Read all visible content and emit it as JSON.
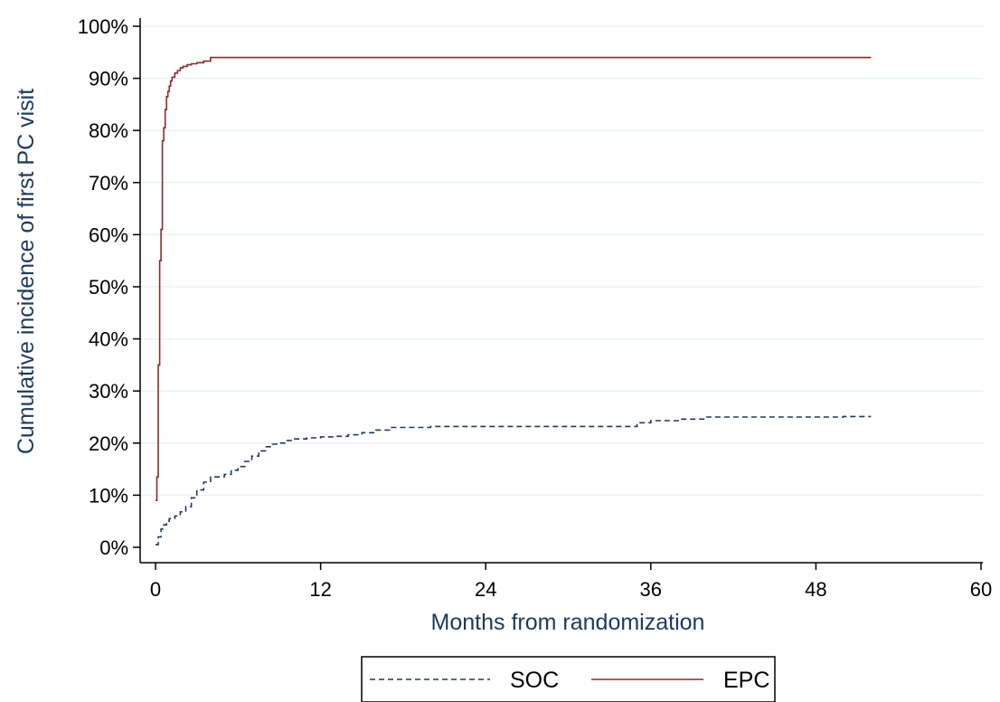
{
  "chart_data": {
    "type": "line",
    "xlabel": "Months from randomization",
    "ylabel": "Cumulative incidence of first PC visit",
    "xlim": [
      0,
      60
    ],
    "ylim": [
      0,
      100
    ],
    "xticks": [
      0,
      12,
      24,
      36,
      48,
      60
    ],
    "yticks": [
      0,
      10,
      20,
      30,
      40,
      50,
      60,
      70,
      80,
      90,
      100
    ],
    "ytick_format": "percent",
    "grid": "horizontal",
    "legend_position": "bottom",
    "series": [
      {
        "name": "SOC",
        "color": "#1f3b5c",
        "style": "dashed",
        "step": true,
        "x": [
          0,
          0.2,
          0.4,
          0.6,
          0.8,
          1.0,
          1.4,
          1.8,
          2.2,
          2.6,
          3.0,
          3.5,
          4.0,
          5.0,
          5.5,
          6.0,
          6.5,
          7.0,
          7.5,
          8.0,
          8.5,
          9.0,
          9.5,
          10.0,
          11.0,
          12.0,
          13.0,
          14.0,
          15.0,
          16.0,
          17.0,
          20.0,
          24.0,
          30.0,
          34.0,
          35.0,
          36.0,
          38.0,
          40.0,
          45.0,
          50.0,
          52.0
        ],
        "y": [
          0.5,
          2.0,
          3.5,
          4.3,
          5.0,
          5.5,
          6.0,
          6.8,
          7.8,
          9.5,
          11.0,
          12.5,
          13.5,
          14.0,
          14.8,
          15.5,
          16.5,
          17.5,
          18.5,
          19.3,
          19.8,
          20.0,
          20.5,
          20.8,
          21.0,
          21.2,
          21.3,
          21.6,
          22.0,
          22.5,
          23.0,
          23.2,
          23.2,
          23.2,
          23.2,
          23.9,
          24.3,
          24.6,
          25.0,
          25.0,
          25.1,
          25.1
        ]
      },
      {
        "name": "EPC",
        "color": "#8b2a2e",
        "style": "solid",
        "step": true,
        "x": [
          0,
          0.1,
          0.2,
          0.3,
          0.4,
          0.5,
          0.6,
          0.7,
          0.8,
          0.9,
          1.0,
          1.1,
          1.2,
          1.4,
          1.6,
          1.8,
          2.0,
          2.3,
          2.6,
          3.0,
          3.5,
          4.0,
          5.0,
          10.0,
          20.0,
          30.0,
          40.0,
          52.0
        ],
        "y": [
          9.0,
          13.5,
          35.0,
          55.0,
          61.0,
          78.0,
          80.5,
          84.0,
          86.5,
          87.5,
          88.5,
          89.5,
          90.2,
          91.0,
          91.5,
          92.0,
          92.3,
          92.6,
          92.8,
          93.0,
          93.3,
          94.0,
          94.0,
          94.0,
          94.0,
          94.0,
          94.0,
          94.0
        ]
      }
    ]
  }
}
